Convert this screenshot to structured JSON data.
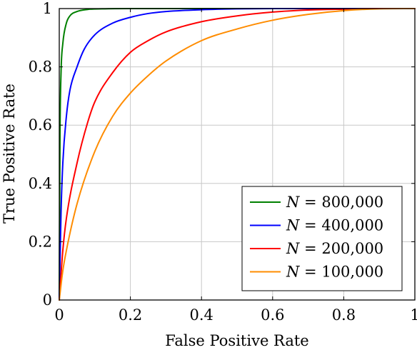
{
  "chart_data": {
    "type": "line",
    "title": "",
    "xlabel": "False Positive Rate",
    "ylabel": "True Positive Rate",
    "xlim": [
      0,
      1
    ],
    "ylim": [
      0,
      1
    ],
    "xticks": [
      0,
      0.2,
      0.4,
      0.6,
      0.8,
      1
    ],
    "xtick_labels": [
      "0",
      "0.2",
      "0.4",
      "0.6",
      "0.8",
      "1"
    ],
    "yticks": [
      0,
      0.2,
      0.4,
      0.6,
      0.8,
      1
    ],
    "ytick_labels": [
      "0",
      "0.2",
      "0.4",
      "0.6",
      "0.8",
      "1"
    ],
    "grid": true,
    "legend_position": "bottom-right",
    "series": [
      {
        "name": "N = 800,000",
        "name_var": "N",
        "name_value": "800,000",
        "color": "#008000",
        "x": [
          0,
          0.002,
          0.005,
          0.01,
          0.02,
          0.03,
          0.05,
          0.08,
          0.12,
          0.2,
          0.3,
          0.5,
          0.7,
          1
        ],
        "y": [
          0,
          0.55,
          0.78,
          0.88,
          0.95,
          0.975,
          0.99,
          0.997,
          0.999,
          1,
          1,
          1,
          1,
          1
        ]
      },
      {
        "name": "N = 400,000",
        "name_var": "N",
        "name_value": "400,000",
        "color": "#0000ff",
        "x": [
          0,
          0.005,
          0.01,
          0.02,
          0.03,
          0.05,
          0.07,
          0.1,
          0.15,
          0.2,
          0.25,
          0.3,
          0.4,
          0.5,
          0.6,
          0.8,
          1
        ],
        "y": [
          0,
          0.3,
          0.47,
          0.63,
          0.72,
          0.8,
          0.86,
          0.91,
          0.95,
          0.97,
          0.983,
          0.99,
          0.996,
          0.999,
          1,
          1,
          1
        ]
      },
      {
        "name": "N = 200,000",
        "name_var": "N",
        "name_value": "200,000",
        "color": "#ff0000",
        "x": [
          0,
          0.01,
          0.02,
          0.05,
          0.08,
          0.1,
          0.15,
          0.2,
          0.25,
          0.3,
          0.4,
          0.5,
          0.6,
          0.7,
          0.8,
          0.9,
          1
        ],
        "y": [
          0,
          0.17,
          0.28,
          0.47,
          0.61,
          0.68,
          0.78,
          0.85,
          0.89,
          0.92,
          0.955,
          0.975,
          0.988,
          0.995,
          0.998,
          1,
          1
        ]
      },
      {
        "name": "N = 100,000",
        "name_var": "N",
        "name_value": "100,000",
        "color": "#ff8c00",
        "x": [
          0,
          0.01,
          0.02,
          0.05,
          0.1,
          0.15,
          0.2,
          0.25,
          0.3,
          0.4,
          0.5,
          0.6,
          0.7,
          0.8,
          0.9,
          1
        ],
        "y": [
          0,
          0.1,
          0.17,
          0.33,
          0.51,
          0.63,
          0.71,
          0.77,
          0.82,
          0.89,
          0.93,
          0.96,
          0.98,
          0.993,
          0.999,
          1
        ]
      }
    ]
  }
}
